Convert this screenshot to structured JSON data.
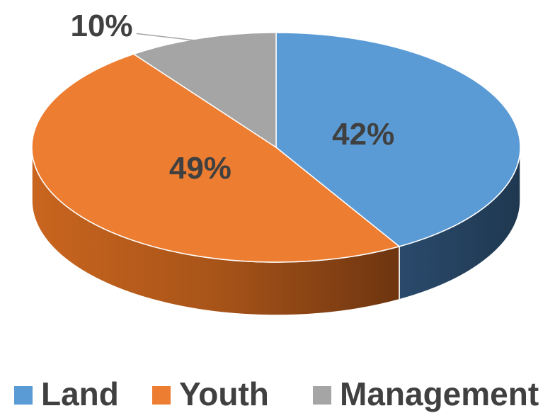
{
  "chart_data": {
    "type": "pie",
    "categories": [
      "Land",
      "Youth",
      "Management"
    ],
    "values": [
      42,
      49,
      10
    ],
    "value_labels": [
      "42%",
      "49%",
      "10%"
    ],
    "colors": [
      "#5b9bd5",
      "#ed7d31",
      "#a5a5a5"
    ],
    "legend": "bottom"
  }
}
